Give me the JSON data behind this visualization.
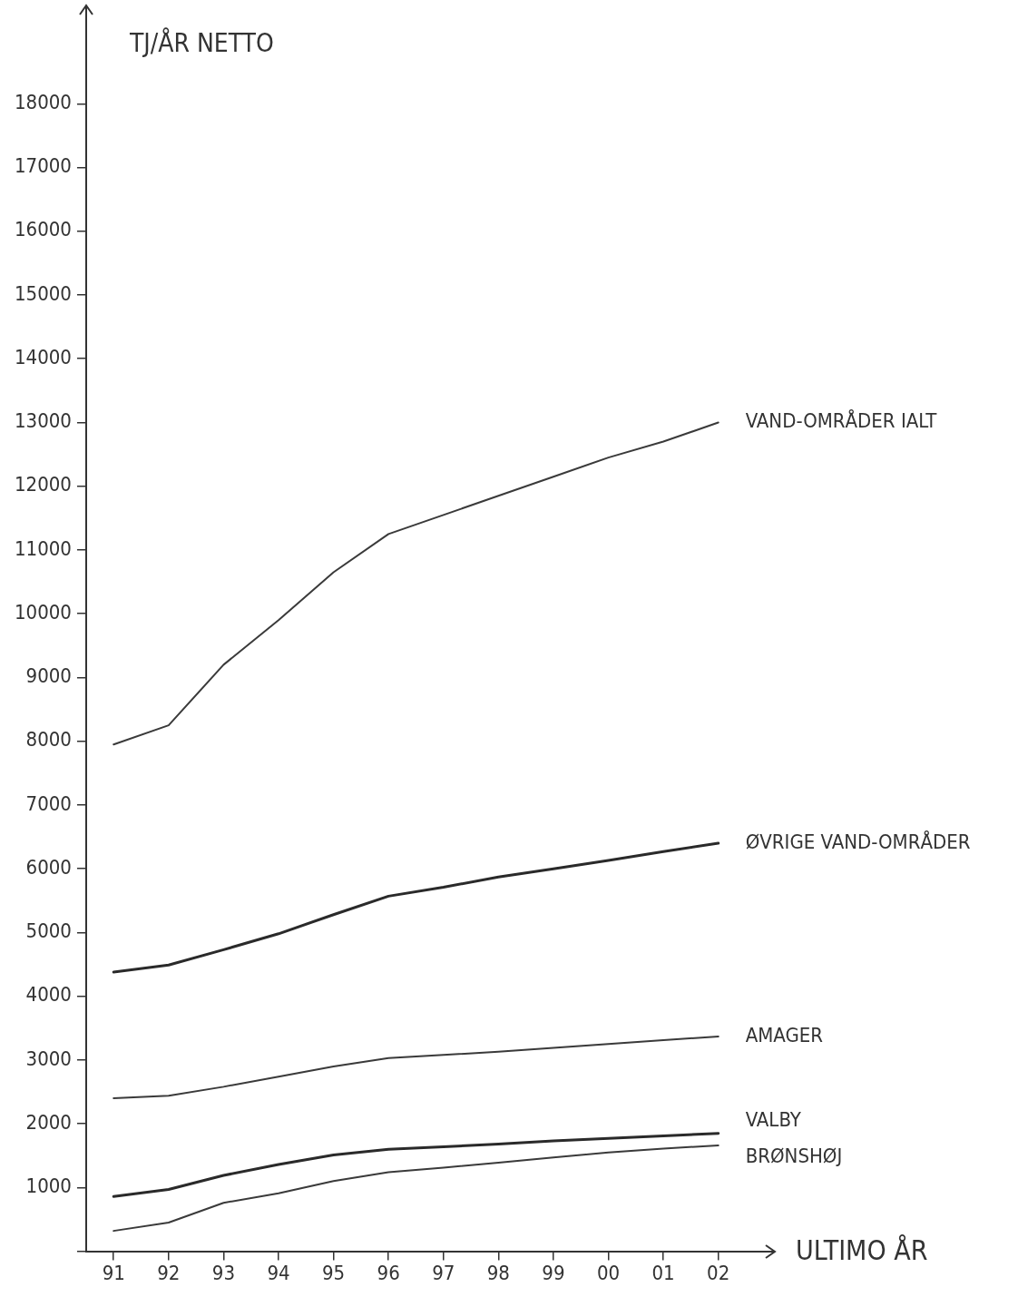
{
  "chart_data": {
    "type": "line",
    "ylabel": "TJ/ÅR NETTO",
    "xlabel": "ULTIMO ÅR",
    "categories": [
      "91",
      "92",
      "93",
      "94",
      "95",
      "96",
      "97",
      "98",
      "99",
      "00",
      "01",
      "02"
    ],
    "ylim": [
      0,
      19200
    ],
    "yticks": [
      {
        "value": 0,
        "label": null
      },
      1000,
      2000,
      3000,
      4000,
      5000,
      6000,
      7000,
      8000,
      9000,
      10000,
      11000,
      12000,
      13000,
      14000,
      15000,
      16000,
      17000,
      18000
    ],
    "grid": false,
    "legend": false,
    "marker": "none",
    "line_style": "solid",
    "series": [
      {
        "name": "VAND-OMRÅDER IALT",
        "color": "#3a3a3a",
        "values": [
          7950,
          8250,
          9200,
          9900,
          10650,
          11250,
          11550,
          11850,
          12150,
          12450,
          12700,
          13000
        ]
      },
      {
        "name": "ØVRIGE VAND-OMRÅDER",
        "color": "#2a2a2a",
        "values": [
          4380,
          4490,
          4730,
          4980,
          5280,
          5570,
          5710,
          5870,
          6000,
          6130,
          6270,
          6400
        ]
      },
      {
        "name": "AMAGER",
        "color": "#3a3a3a",
        "values": [
          2400,
          2440,
          2580,
          2740,
          2900,
          3030,
          3080,
          3130,
          3190,
          3250,
          3310,
          3370
        ]
      },
      {
        "name": "VALBY",
        "color": "#2a2a2a",
        "values": [
          860,
          970,
          1190,
          1360,
          1510,
          1600,
          1640,
          1680,
          1730,
          1770,
          1810,
          1850
        ]
      },
      {
        "name": "BRØNSHØJ",
        "color": "#3a3a3a",
        "values": [
          320,
          450,
          760,
          910,
          1100,
          1240,
          1310,
          1390,
          1470,
          1550,
          1610,
          1660
        ]
      }
    ]
  }
}
